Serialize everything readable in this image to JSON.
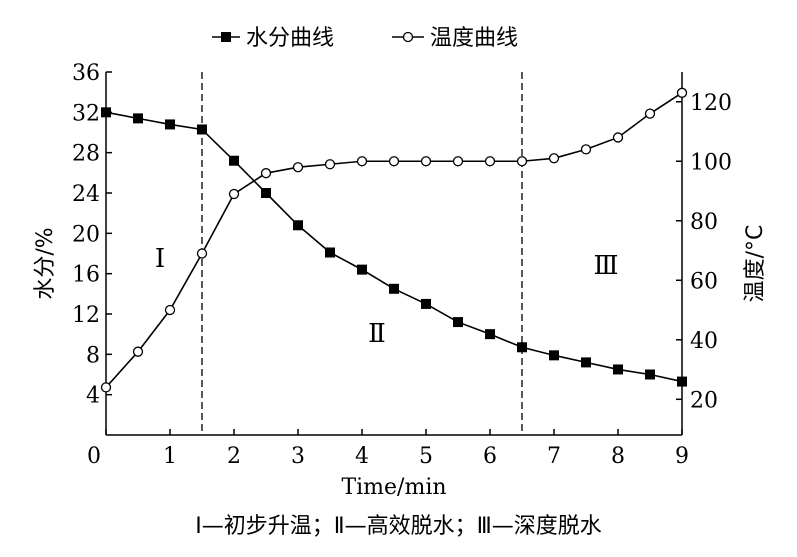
{
  "chart_data": {
    "type": "line",
    "title": "",
    "legend": {
      "placement": "top-center",
      "entries": [
        "水分曲线",
        "温度曲线"
      ]
    },
    "xlabel": "Time/min",
    "ylabel_left": "水分/%",
    "ylabel_right": "温度/°C",
    "xlim": [
      0,
      9
    ],
    "ylim_left": [
      0,
      36
    ],
    "ylim_right": [
      8,
      130
    ],
    "xticks": [
      "0",
      "1",
      "2",
      "3",
      "4",
      "5",
      "6",
      "7",
      "8",
      "9"
    ],
    "yticks_left": [
      "4",
      "8",
      "12",
      "16",
      "20",
      "24",
      "28",
      "32",
      "36"
    ],
    "yticks_right": [
      "20",
      "40",
      "60",
      "80",
      "100",
      "120"
    ],
    "grid": false,
    "vlines": [
      1.5,
      6.5
    ],
    "region_labels": [
      "Ⅰ",
      "Ⅱ",
      "Ⅲ"
    ],
    "series": [
      {
        "name": "水分曲线",
        "axis": "left",
        "marker": "filled-square",
        "x": [
          0,
          0.5,
          1,
          1.5,
          2,
          2.5,
          3,
          3.5,
          4,
          4.5,
          5,
          5.5,
          6,
          6.5,
          7,
          7.5,
          8,
          8.5,
          9
        ],
        "values": [
          32.0,
          31.4,
          30.8,
          30.3,
          27.2,
          24.0,
          20.8,
          18.1,
          16.4,
          14.5,
          13.0,
          11.2,
          10.0,
          8.7,
          7.9,
          7.2,
          6.5,
          6.0,
          5.3
        ]
      },
      {
        "name": "温度曲线",
        "axis": "right",
        "marker": "open-circle",
        "x": [
          0,
          0.5,
          1,
          1.5,
          2,
          2.5,
          3,
          3.5,
          4,
          4.5,
          5,
          5.5,
          6,
          6.5,
          7,
          7.5,
          8,
          8.5,
          9
        ],
        "values": [
          24,
          36,
          50,
          69,
          89,
          96,
          98,
          99,
          100,
          100,
          100,
          100,
          100,
          100,
          101,
          104,
          108,
          116,
          123
        ]
      }
    ],
    "caption": "Ⅰ—初步升温；Ⅱ—高效脱水；Ⅲ—深度脱水"
  }
}
